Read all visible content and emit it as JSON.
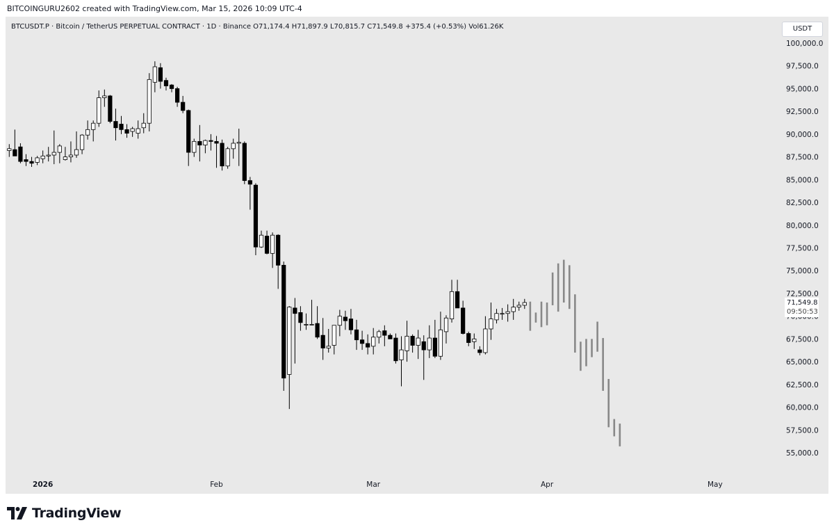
{
  "header": {
    "caption": "BITCOINGURU2602 created with TradingView.com, Mar 15, 2026 10:09 UTC-4",
    "symbol_line": "BTCUSDT.P · Bitcoin / TetherUS PERPETUAL CONTRACT · 1D · Binance   O71,174.4  H71,897.9  L70,815.7  C71,549.8  +375.4 (+0.53%)  Vol61.26K",
    "currency": "USDT"
  },
  "last_price": {
    "price": "71,549.8",
    "countdown": "09:50:53"
  },
  "logo": {
    "text": "TradingView",
    "icon": "tradingview-logo-icon"
  },
  "colors": {
    "background": "#e9e9e9",
    "candle": "#000000",
    "projection": "#888888"
  },
  "chart_data": {
    "type": "candlestick",
    "y_axis": {
      "range": [
        53500,
        101000
      ],
      "ticks": [
        55000,
        57500,
        60000,
        62500,
        65000,
        67500,
        70000,
        72500,
        75000,
        77500,
        80000,
        82500,
        85000,
        87500,
        90000,
        92500,
        95000,
        97500,
        100000
      ],
      "tick_labels": [
        "55,000.0",
        "57,500.0",
        "60,000.0",
        "62,500.0",
        "65,000.0",
        "67,500.0",
        "70,000.0",
        "72,500.0",
        "75,000.0",
        "77,500.0",
        "80,000.0",
        "82,500.0",
        "85,000.0",
        "87,500.0",
        "90,000.0",
        "92,500.0",
        "95,000.0",
        "97,500.0",
        "100,000.0"
      ]
    },
    "x_axis": {
      "labels": [
        {
          "text": "2026",
          "day": 6
        },
        {
          "text": "Feb",
          "day": 37
        },
        {
          "text": "Mar",
          "day": 65
        },
        {
          "text": "Apr",
          "day": 96
        },
        {
          "text": "May",
          "day": 126
        }
      ]
    },
    "candles": [
      [
        0,
        88200,
        88900,
        87500,
        88400
      ],
      [
        1,
        88300,
        90500,
        87600,
        87600
      ],
      [
        2,
        88600,
        89000,
        86800,
        87000
      ],
      [
        3,
        87200,
        87800,
        86500,
        87000
      ],
      [
        4,
        87000,
        87500,
        86400,
        86800
      ],
      [
        5,
        86900,
        87600,
        86600,
        87400
      ],
      [
        6,
        87300,
        88200,
        86800,
        87600
      ],
      [
        7,
        87600,
        88600,
        87000,
        87700
      ],
      [
        8,
        87700,
        90400,
        86700,
        88000
      ],
      [
        9,
        88000,
        88900,
        86800,
        88700
      ],
      [
        10,
        87200,
        88600,
        87100,
        87500
      ],
      [
        11,
        87500,
        89200,
        86900,
        87700
      ],
      [
        12,
        87700,
        90300,
        87400,
        88300
      ],
      [
        13,
        88300,
        90000,
        87800,
        89900
      ],
      [
        14,
        89900,
        91500,
        89400,
        90500
      ],
      [
        15,
        90500,
        91500,
        89200,
        91200
      ],
      [
        16,
        91200,
        94800,
        90800,
        94000
      ],
      [
        17,
        94000,
        94900,
        93000,
        94200
      ],
      [
        18,
        94200,
        94300,
        91200,
        91400
      ],
      [
        19,
        91400,
        92800,
        89300,
        90700
      ],
      [
        20,
        91100,
        92000,
        90000,
        90500
      ],
      [
        21,
        90500,
        91100,
        89600,
        90100
      ],
      [
        22,
        90300,
        90800,
        89700,
        90600
      ],
      [
        23,
        90100,
        91500,
        89500,
        90600
      ],
      [
        24,
        90700,
        92300,
        90100,
        91200
      ],
      [
        25,
        91200,
        96700,
        90300,
        96000
      ],
      [
        26,
        95700,
        98000,
        94600,
        97400
      ],
      [
        27,
        97300,
        97800,
        95000,
        95800
      ],
      [
        28,
        95900,
        96200,
        94800,
        95300
      ],
      [
        29,
        95400,
        95500,
        94600,
        95000
      ],
      [
        30,
        95000,
        95200,
        93000,
        93500
      ],
      [
        31,
        93500,
        94200,
        92300,
        92600
      ],
      [
        32,
        92600,
        92700,
        86500,
        88000
      ],
      [
        33,
        88000,
        89500,
        87500,
        89200
      ],
      [
        34,
        89200,
        91000,
        87000,
        88800
      ],
      [
        35,
        88800,
        89400,
        87900,
        89300
      ],
      [
        36,
        89300,
        90000,
        88200,
        89200
      ],
      [
        37,
        89200,
        89800,
        86300,
        89000
      ],
      [
        38,
        89000,
        89400,
        86000,
        86500
      ],
      [
        39,
        86500,
        88600,
        86200,
        88400
      ],
      [
        40,
        88400,
        89500,
        87300,
        89000
      ],
      [
        41,
        89000,
        90600,
        86500,
        89100
      ],
      [
        42,
        89000,
        89200,
        84500,
        84900
      ],
      [
        43,
        84900,
        85300,
        81700,
        84500
      ],
      [
        44,
        84400,
        84600,
        76700,
        77600
      ],
      [
        45,
        77600,
        79400,
        77500,
        78900
      ],
      [
        46,
        78800,
        79400,
        76800,
        76900
      ],
      [
        47,
        76900,
        79200,
        75300,
        78900
      ],
      [
        48,
        78900,
        79000,
        73000,
        75600
      ],
      [
        49,
        75600,
        76000,
        61800,
        63200
      ],
      [
        50,
        63600,
        71100,
        59800,
        71000
      ],
      [
        51,
        70900,
        72000,
        64800,
        70300
      ],
      [
        52,
        70400,
        71100,
        68400,
        69300
      ],
      [
        53,
        69100,
        70300,
        68500,
        69100
      ],
      [
        54,
        69100,
        71800,
        69000,
        69100
      ],
      [
        55,
        69200,
        71100,
        67500,
        67700
      ],
      [
        56,
        67900,
        69800,
        65200,
        66500
      ],
      [
        57,
        66500,
        68600,
        66000,
        66700
      ],
      [
        58,
        66800,
        69000,
        65800,
        69000
      ],
      [
        59,
        69000,
        70700,
        67800,
        70000
      ],
      [
        60,
        69900,
        70600,
        68500,
        69500
      ],
      [
        61,
        69700,
        70800,
        68000,
        68500
      ],
      [
        62,
        68500,
        69600,
        66300,
        67400
      ],
      [
        63,
        67400,
        68400,
        66300,
        67000
      ],
      [
        64,
        67000,
        68000,
        65800,
        66600
      ],
      [
        65,
        66700,
        68700,
        65800,
        67700
      ],
      [
        66,
        67700,
        68500,
        67000,
        68300
      ],
      [
        67,
        68400,
        69000,
        66700,
        67900
      ],
      [
        68,
        67900,
        68100,
        67500,
        67500
      ],
      [
        69,
        67600,
        68100,
        64800,
        65100
      ],
      [
        70,
        65200,
        67800,
        62300,
        66300
      ],
      [
        71,
        66200,
        69500,
        65000,
        67800
      ],
      [
        72,
        67800,
        68000,
        66000,
        66800
      ],
      [
        73,
        66800,
        68500,
        65300,
        67600
      ],
      [
        74,
        67200,
        67900,
        63000,
        66300
      ],
      [
        75,
        66300,
        69000,
        65400,
        67600
      ],
      [
        76,
        67600,
        69600,
        65400,
        65600
      ],
      [
        77,
        65600,
        70500,
        65200,
        68500
      ],
      [
        78,
        68300,
        70100,
        67000,
        69800
      ],
      [
        79,
        69700,
        74000,
        69300,
        72700
      ],
      [
        80,
        72700,
        74000,
        70900,
        70900
      ],
      [
        81,
        70900,
        71700,
        68000,
        68100
      ],
      [
        82,
        68100,
        68300,
        66700,
        67100
      ],
      [
        83,
        67200,
        68100,
        66400,
        67500
      ],
      [
        84,
        66300,
        66700,
        65700,
        66000
      ],
      [
        85,
        66000,
        70000,
        65800,
        68600
      ],
      [
        86,
        68600,
        71500,
        67400,
        69700
      ],
      [
        87,
        69600,
        70800,
        69200,
        70300
      ],
      [
        88,
        70300,
        70900,
        69600,
        70300
      ],
      [
        89,
        70300,
        71300,
        69400,
        70500
      ],
      [
        90,
        70500,
        71900,
        69600,
        71000
      ],
      [
        91,
        71000,
        71600,
        70600,
        71200
      ],
      [
        92,
        71200,
        71900,
        70800,
        71500
      ]
    ],
    "projection_bars": [
      [
        93,
        71600,
        68400
      ],
      [
        94,
        70400,
        69300
      ],
      [
        95,
        71600,
        68800
      ],
      [
        96,
        71500,
        69000
      ],
      [
        97,
        74800,
        71200
      ],
      [
        98,
        75800,
        70500
      ],
      [
        99,
        76200,
        71500
      ],
      [
        100,
        75600,
        70800
      ],
      [
        101,
        72400,
        66000
      ],
      [
        102,
        67200,
        64000
      ],
      [
        103,
        67500,
        64500
      ],
      [
        104,
        67500,
        65500
      ],
      [
        105,
        69400,
        66100
      ],
      [
        106,
        67600,
        61800
      ],
      [
        107,
        63100,
        57800
      ],
      [
        108,
        58700,
        56800
      ],
      [
        109,
        58200,
        55700
      ]
    ]
  }
}
